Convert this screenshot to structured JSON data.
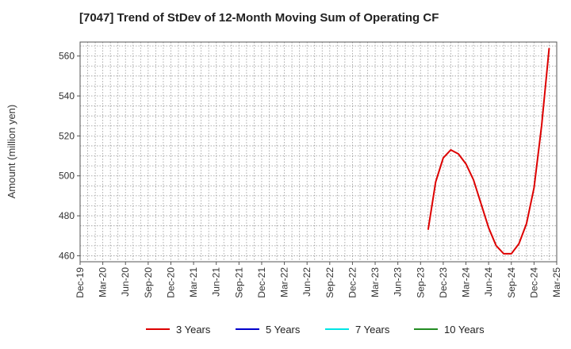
{
  "chart_data": {
    "type": "line",
    "title": "[7047]  Trend of StDev of 12-Month Moving Sum of Operating CF",
    "xlabel": "",
    "ylabel": "Amount (million yen)",
    "ylim": [
      457,
      567
    ],
    "yticks": [
      460,
      480,
      500,
      520,
      540,
      560
    ],
    "x_ticks": [
      "Dec-19",
      "Mar-20",
      "Jun-20",
      "Sep-20",
      "Dec-20",
      "Mar-21",
      "Jun-21",
      "Sep-21",
      "Dec-21",
      "Mar-22",
      "Jun-22",
      "Sep-22",
      "Dec-22",
      "Mar-23",
      "Jun-23",
      "Sep-23",
      "Dec-23",
      "Mar-24",
      "Jun-24",
      "Sep-24",
      "Dec-24",
      "Mar-25"
    ],
    "grid": true,
    "legend_position": "bottom",
    "series": [
      {
        "name": "3 Years",
        "color": "#dd0000",
        "x": [
          "Oct-23",
          "Nov-23",
          "Dec-23",
          "Jan-24",
          "Feb-24",
          "Mar-24",
          "Apr-24",
          "May-24",
          "Jun-24",
          "Jul-24",
          "Aug-24",
          "Sep-24",
          "Oct-24",
          "Nov-24",
          "Dec-24",
          "Jan-25",
          "Feb-25"
        ],
        "values": [
          473,
          497,
          509,
          513,
          511,
          506,
          498,
          486,
          474,
          465,
          461,
          461,
          466,
          476,
          494,
          525,
          564
        ]
      },
      {
        "name": "5 Years",
        "color": "#0000cc",
        "x": [],
        "values": []
      },
      {
        "name": "7 Years",
        "color": "#00e5e5",
        "x": [],
        "values": []
      },
      {
        "name": "10 Years",
        "color": "#228b22",
        "x": [],
        "values": []
      }
    ]
  }
}
